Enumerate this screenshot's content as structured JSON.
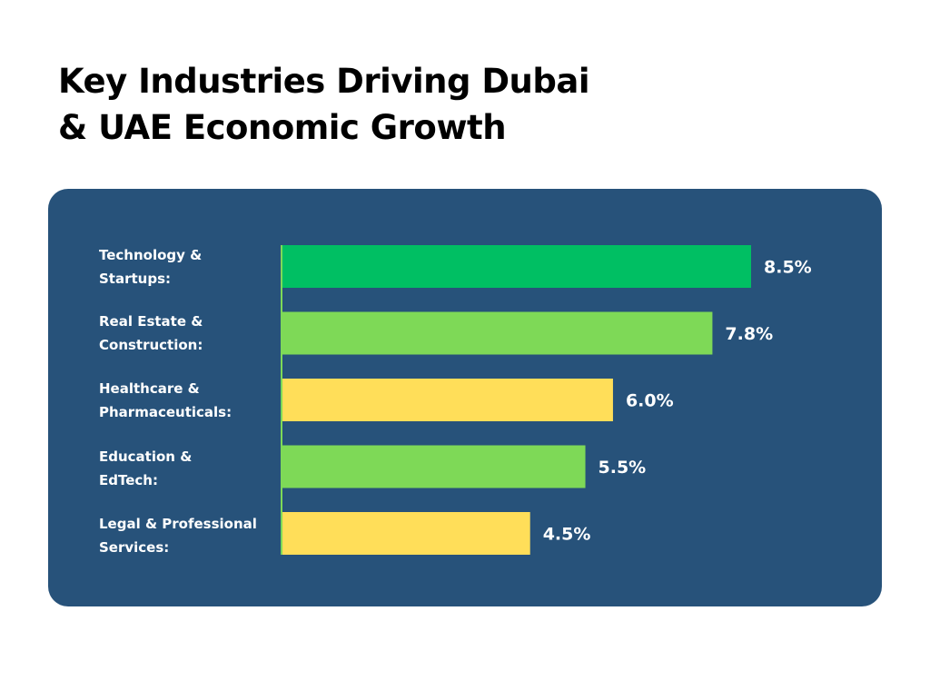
{
  "title_lines": [
    "Key Industries Driving Dubai",
    "& UAE Economic Growth"
  ],
  "chart_data": {
    "type": "bar",
    "orientation": "horizontal",
    "title": "Key Industries Driving Dubai & UAE Economic Growth",
    "categories": [
      "Technology & Startups:",
      "Real Estate & Construction:",
      "Healthcare & Pharmaceuticals:",
      "Education & EdTech:",
      "Legal & Professional Services:"
    ],
    "category_lines": [
      [
        "Technology &",
        "Startups:"
      ],
      [
        "Real Estate &",
        "Construction:"
      ],
      [
        "Healthcare &",
        "Pharmaceuticals:"
      ],
      [
        "Education &",
        "EdTech:"
      ],
      [
        "Legal & Professional",
        "Services:"
      ]
    ],
    "values": [
      8.5,
      7.8,
      6.0,
      5.5,
      4.5
    ],
    "value_labels": [
      "8.5%",
      "7.8%",
      "6.0%",
      "5.5%",
      "4.5%"
    ],
    "colors": [
      "#00bf63",
      "#7ed957",
      "#ffde59",
      "#7ed957",
      "#ffde59"
    ],
    "xlabel": "",
    "ylabel": "",
    "xlim": [
      0,
      8.5
    ],
    "grid": false,
    "legend": "none"
  },
  "colors": {
    "panel": "#27527a",
    "axis": "#7ed957"
  }
}
